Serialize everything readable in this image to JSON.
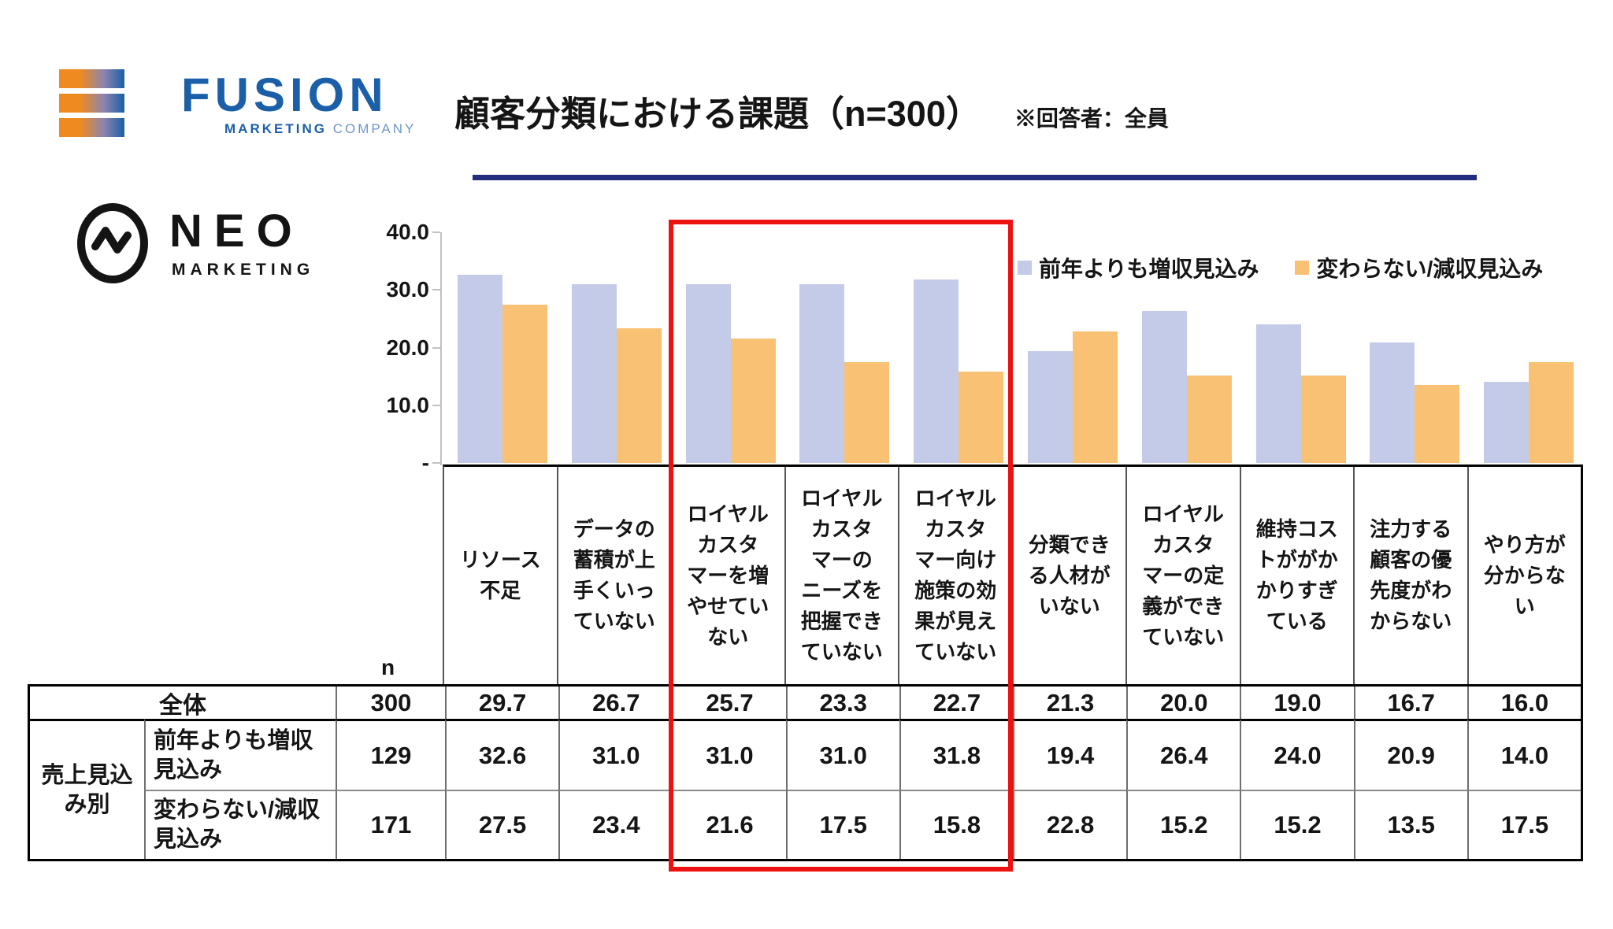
{
  "header": {
    "fusion_logo": {
      "brand": "FUSION",
      "tagline_bold": "MARKETING",
      "tagline_light": "COMPANY"
    },
    "neo_logo": {
      "brand": "NEO",
      "sub": "MARKETING"
    },
    "title": "顧客分類における課題（n=300）",
    "note": "※回答者：全員"
  },
  "colors": {
    "series_increase": "#c4cbe9",
    "series_decrease": "#f9c173",
    "highlight_red": "#ee1111",
    "title_underline_navy": "#232d7e",
    "fusion_blue": "#1a5fa8",
    "logo_orange": "#ee8a1f",
    "axis_gray": "#c2c2c2"
  },
  "chart_data": {
    "type": "bar",
    "title": "顧客分類における課題（n=300）",
    "note": "※回答者：全員",
    "grid": false,
    "legend_position": "top-right",
    "y_axis": {
      "max": 40,
      "ticks": [
        {
          "label": "40.0",
          "value": 40
        },
        {
          "label": "30.0",
          "value": 30
        },
        {
          "label": "20.0",
          "value": 20
        },
        {
          "label": "10.0",
          "value": 10
        },
        {
          "label": "-",
          "value": 0
        }
      ]
    },
    "categories": [
      "リソース\n不足",
      "データの\n蓄積が上\n手くいっ\nていない",
      "ロイヤル\nカスタ\nマーを増\nやせてい\nない",
      "ロイヤル\nカスタ\nマーの\nニーズを\n把握でき\nていない",
      "ロイヤル\nカスタ\nマー向け\n施策の効\n果が見え\nていない",
      "分類でき\nる人材が\nいない",
      "ロイヤル\nカスタ\nマーの定\n義ができ\nていない",
      "維持コス\nトががか\nかりすぎ\nている",
      "注力する\n顧客の優\n先度がわ\nからない",
      "やり方が\n分からな\nい"
    ],
    "series": [
      {
        "name": "前年よりも増収見込み",
        "color": "#c4cbe9",
        "values": [
          32.6,
          31.0,
          31.0,
          31.0,
          31.8,
          19.4,
          26.4,
          24.0,
          20.9,
          14.0
        ]
      },
      {
        "name": "変わらない/減収見込み",
        "color": "#f9c173",
        "values": [
          27.5,
          23.4,
          21.6,
          17.5,
          15.8,
          22.8,
          15.2,
          15.2,
          13.5,
          17.5
        ]
      }
    ],
    "highlight": {
      "color": "#ee1111",
      "categories": [
        "ロイヤルカスタマーを増やせていない",
        "ロイヤルカスタマーのニーズを把握できていない",
        "ロイヤルカスタマー向け施策の効果が見えていない"
      ]
    }
  },
  "table": {
    "n_header": "n",
    "rows": [
      {
        "group": "",
        "label": "全体",
        "n": "300",
        "values": [
          "29.7",
          "26.7",
          "25.7",
          "23.3",
          "22.7",
          "21.3",
          "20.0",
          "19.0",
          "16.7",
          "16.0"
        ]
      },
      {
        "group": "売上見込\nみ別",
        "label": "前年よりも増収\n見込み",
        "n": "129",
        "values": [
          "32.6",
          "31.0",
          "31.0",
          "31.0",
          "31.8",
          "19.4",
          "26.4",
          "24.0",
          "20.9",
          "14.0"
        ]
      },
      {
        "group": "",
        "label": "変わらない/減収\n見込み",
        "n": "171",
        "values": [
          "27.5",
          "23.4",
          "21.6",
          "17.5",
          "15.8",
          "22.8",
          "15.2",
          "15.2",
          "13.5",
          "17.5"
        ]
      }
    ]
  }
}
